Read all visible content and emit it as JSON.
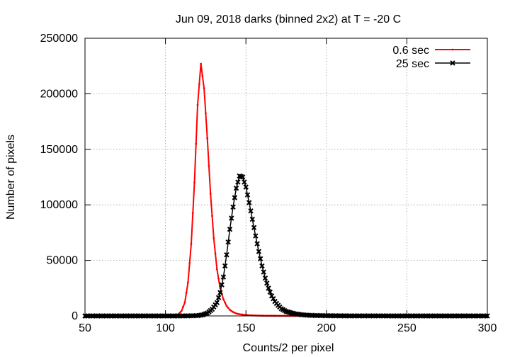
{
  "chart_data": {
    "type": "line",
    "title": "Jun 09, 2018 darks (binned 2x2) at T = -20 C",
    "xlabel": "Counts/2 per pixel",
    "ylabel": "Number of pixels",
    "xlim": [
      50,
      300
    ],
    "ylim": [
      0,
      250000
    ],
    "xticks": [
      "50",
      "100",
      "150",
      "200",
      "250",
      "300"
    ],
    "yticks": [
      "0",
      "50000",
      "100000",
      "150000",
      "200000",
      "250000"
    ],
    "grid": true,
    "legend_position": "top-right",
    "series": [
      {
        "name": "0.6 sec",
        "color": "#ff0000",
        "marker": "dot",
        "x": [
          50,
          100,
          104,
          106,
          108,
          110,
          112,
          114,
          116,
          118,
          120,
          122,
          124,
          126,
          128,
          130,
          132,
          134,
          136,
          138,
          140,
          142,
          144,
          146,
          150,
          155,
          160,
          170,
          180,
          190,
          200,
          250,
          300
        ],
        "y": [
          0,
          0,
          150,
          500,
          1500,
          4500,
          12000,
          30000,
          65000,
          120000,
          190000,
          227000,
          205000,
          160000,
          110000,
          70000,
          42000,
          25000,
          15000,
          9000,
          5500,
          3500,
          2200,
          1500,
          800,
          400,
          200,
          80,
          30,
          10,
          0,
          0,
          0
        ]
      },
      {
        "name": "25 sec",
        "color": "#000000",
        "marker": "x",
        "x": [
          50,
          110,
          115,
          120,
          123,
          126,
          129,
          132,
          134,
          136,
          138,
          140,
          142,
          144,
          146,
          148,
          150,
          152,
          154,
          156,
          158,
          160,
          162,
          164,
          166,
          168,
          170,
          172,
          175,
          180,
          185,
          190,
          200,
          210,
          220,
          240,
          260,
          280,
          300
        ],
        "y": [
          0,
          0,
          100,
          300,
          900,
          2500,
          6000,
          12000,
          21000,
          35000,
          55000,
          78000,
          98000,
          115000,
          126000,
          125000,
          116000,
          102000,
          87000,
          72000,
          58000,
          45000,
          34000,
          25000,
          18000,
          13000,
          9500,
          6500,
          4000,
          2000,
          1000,
          500,
          200,
          80,
          30,
          10,
          0,
          0,
          0
        ]
      }
    ]
  }
}
